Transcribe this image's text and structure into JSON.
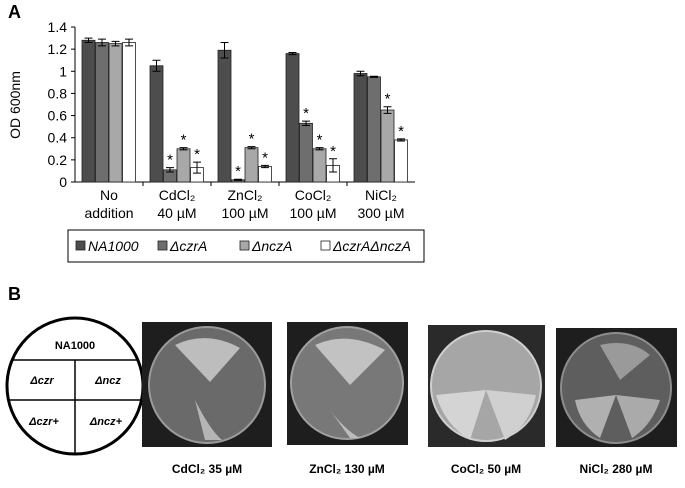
{
  "panel_labels": [
    "A",
    "B"
  ],
  "chart_data": {
    "type": "bar",
    "ylabel": "OD 600nm",
    "categories": [
      [
        "No",
        "addition"
      ],
      [
        "CdCl₂",
        "40 µM"
      ],
      [
        "ZnCl₂",
        "100 µM"
      ],
      [
        "CoCl₂",
        "100 µM"
      ],
      [
        "NiCl₂",
        "300 µM"
      ]
    ],
    "ylim": [
      0,
      1.4
    ],
    "yticks": [
      0,
      0.2,
      0.4,
      0.6,
      0.8,
      1,
      1.2,
      1.4
    ],
    "grid": false,
    "legend": "bottom",
    "series": [
      {
        "name": "NA1000",
        "color": "#4d4d4d",
        "values": [
          1.28,
          1.05,
          1.19,
          1.16,
          0.98
        ],
        "errors": [
          0.02,
          0.05,
          0.07,
          0.01,
          0.02
        ],
        "markers": [
          null,
          null,
          null,
          null,
          null
        ]
      },
      {
        "name": "ΔczrA",
        "color": "#6e6e6e",
        "values": [
          1.26,
          0.11,
          0.02,
          0.53,
          0.95
        ],
        "errors": [
          0.03,
          0.02,
          0.005,
          0.02,
          0.005
        ],
        "markers": [
          null,
          "*",
          "*",
          "*",
          null
        ]
      },
      {
        "name": "ΔnczA",
        "color": "#a8a8a8",
        "values": [
          1.25,
          0.3,
          0.31,
          0.3,
          0.65
        ],
        "errors": [
          0.02,
          0.01,
          0.01,
          0.01,
          0.03
        ],
        "markers": [
          null,
          "*",
          "*",
          "*",
          "*"
        ]
      },
      {
        "name": "ΔczrAΔnczA",
        "color": "#ffffff",
        "values": [
          1.26,
          0.13,
          0.14,
          0.15,
          0.38
        ],
        "errors": [
          0.03,
          0.05,
          0.01,
          0.06,
          0.01
        ],
        "markers": [
          null,
          "*",
          "*",
          "*",
          "*"
        ]
      }
    ]
  },
  "plate_map": [
    "NA1000",
    "Δczr",
    "Δncz",
    "Δczr+",
    "Δncz+"
  ],
  "plates": [
    {
      "caption": "CdCl₂ 35 µM"
    },
    {
      "caption": "ZnCl₂ 130 µM"
    },
    {
      "caption": "CoCl₂ 50 µM"
    },
    {
      "caption": "NiCl₂ 280 µM"
    }
  ]
}
